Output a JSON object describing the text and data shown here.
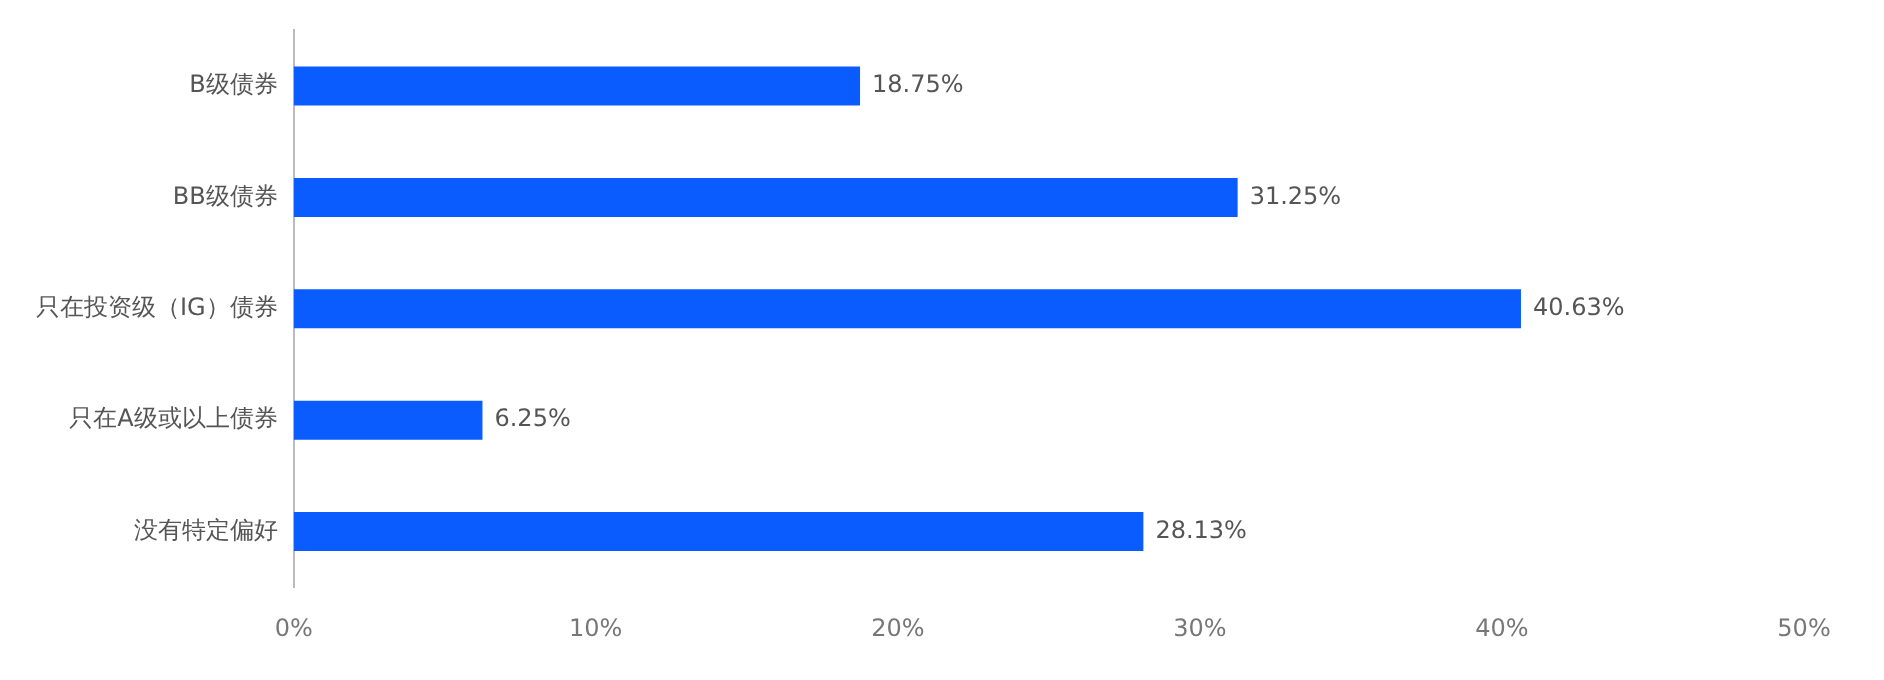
{
  "chart_data": {
    "type": "bar",
    "orientation": "horizontal",
    "categories": [
      "B级债券",
      "BB级债券",
      "只在投资级（IG）债券",
      "只在A级或以上债券",
      "没有特定偏好"
    ],
    "values": [
      18.75,
      31.25,
      40.63,
      6.25,
      28.13
    ],
    "value_labels": [
      "18.75%",
      "31.25%",
      "40.63%",
      "6.25%",
      "28.13%"
    ],
    "color": "#0a5cff",
    "xlim": [
      0,
      50
    ],
    "xticks": [
      {
        "value": 0,
        "label": "0%"
      },
      {
        "value": 10,
        "label": "10%"
      },
      {
        "value": 20,
        "label": "20%"
      },
      {
        "value": 30,
        "label": "30%"
      },
      {
        "value": 40,
        "label": "40%"
      },
      {
        "value": 50,
        "label": "50%"
      }
    ],
    "grid": false,
    "legend": false
  }
}
